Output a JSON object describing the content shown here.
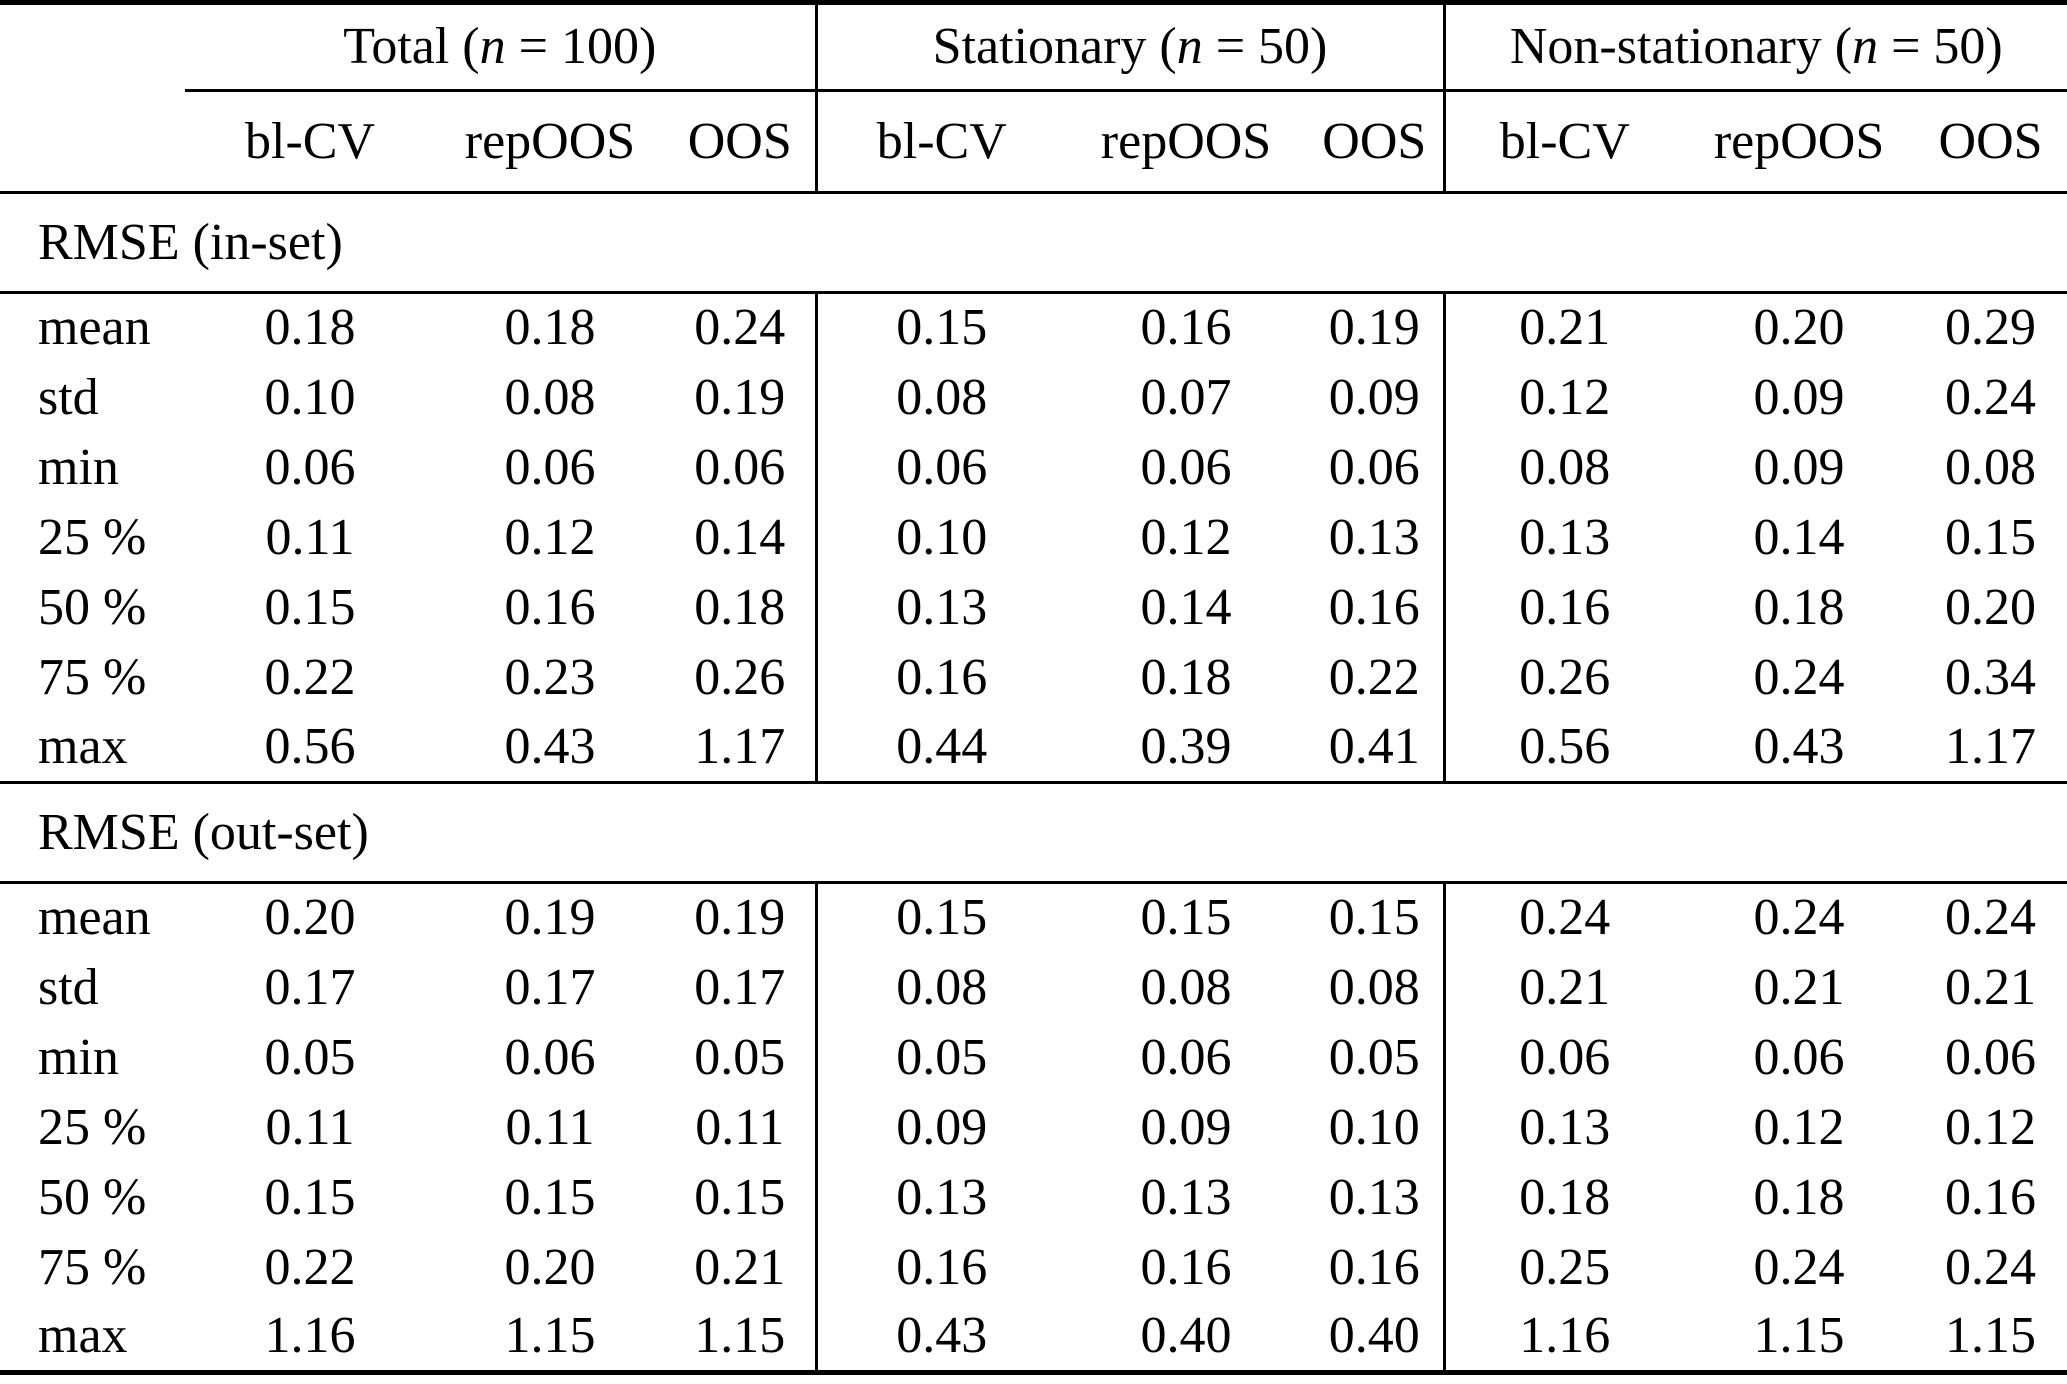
{
  "table": {
    "groups": [
      {
        "prefix": "Total (",
        "var": "n",
        "suffix": " = 100)"
      },
      {
        "prefix": "Stationary (",
        "var": "n",
        "suffix": " = 50)"
      },
      {
        "prefix": "Non-stationary (",
        "var": "n",
        "suffix": " = 50)"
      }
    ],
    "method_headers": [
      "bl-CV",
      "repOOS",
      "OOS"
    ],
    "sections": [
      {
        "title": "RMSE (in-set)",
        "rows": [
          {
            "label": "mean",
            "values": [
              "0.18",
              "0.18",
              "0.24",
              "0.15",
              "0.16",
              "0.19",
              "0.21",
              "0.20",
              "0.29"
            ]
          },
          {
            "label": "std",
            "values": [
              "0.10",
              "0.08",
              "0.19",
              "0.08",
              "0.07",
              "0.09",
              "0.12",
              "0.09",
              "0.24"
            ]
          },
          {
            "label": "min",
            "values": [
              "0.06",
              "0.06",
              "0.06",
              "0.06",
              "0.06",
              "0.06",
              "0.08",
              "0.09",
              "0.08"
            ]
          },
          {
            "label": "25 %",
            "values": [
              "0.11",
              "0.12",
              "0.14",
              "0.10",
              "0.12",
              "0.13",
              "0.13",
              "0.14",
              "0.15"
            ]
          },
          {
            "label": "50 %",
            "values": [
              "0.15",
              "0.16",
              "0.18",
              "0.13",
              "0.14",
              "0.16",
              "0.16",
              "0.18",
              "0.20"
            ]
          },
          {
            "label": "75 %",
            "values": [
              "0.22",
              "0.23",
              "0.26",
              "0.16",
              "0.18",
              "0.22",
              "0.26",
              "0.24",
              "0.34"
            ]
          },
          {
            "label": "max",
            "values": [
              "0.56",
              "0.43",
              "1.17",
              "0.44",
              "0.39",
              "0.41",
              "0.56",
              "0.43",
              "1.17"
            ]
          }
        ]
      },
      {
        "title": "RMSE (out-set)",
        "rows": [
          {
            "label": "mean",
            "values": [
              "0.20",
              "0.19",
              "0.19",
              "0.15",
              "0.15",
              "0.15",
              "0.24",
              "0.24",
              "0.24"
            ]
          },
          {
            "label": "std",
            "values": [
              "0.17",
              "0.17",
              "0.17",
              "0.08",
              "0.08",
              "0.08",
              "0.21",
              "0.21",
              "0.21"
            ]
          },
          {
            "label": "min",
            "values": [
              "0.05",
              "0.06",
              "0.05",
              "0.05",
              "0.06",
              "0.05",
              "0.06",
              "0.06",
              "0.06"
            ]
          },
          {
            "label": "25 %",
            "values": [
              "0.11",
              "0.11",
              "0.11",
              "0.09",
              "0.09",
              "0.10",
              "0.13",
              "0.12",
              "0.12"
            ]
          },
          {
            "label": "50 %",
            "values": [
              "0.15",
              "0.15",
              "0.15",
              "0.13",
              "0.13",
              "0.13",
              "0.18",
              "0.18",
              "0.16"
            ]
          },
          {
            "label": "75 %",
            "values": [
              "0.22",
              "0.20",
              "0.21",
              "0.16",
              "0.16",
              "0.16",
              "0.25",
              "0.24",
              "0.24"
            ]
          },
          {
            "label": "max",
            "values": [
              "1.16",
              "1.15",
              "1.15",
              "0.43",
              "0.40",
              "0.40",
              "1.16",
              "1.15",
              "1.15"
            ]
          }
        ]
      }
    ]
  }
}
